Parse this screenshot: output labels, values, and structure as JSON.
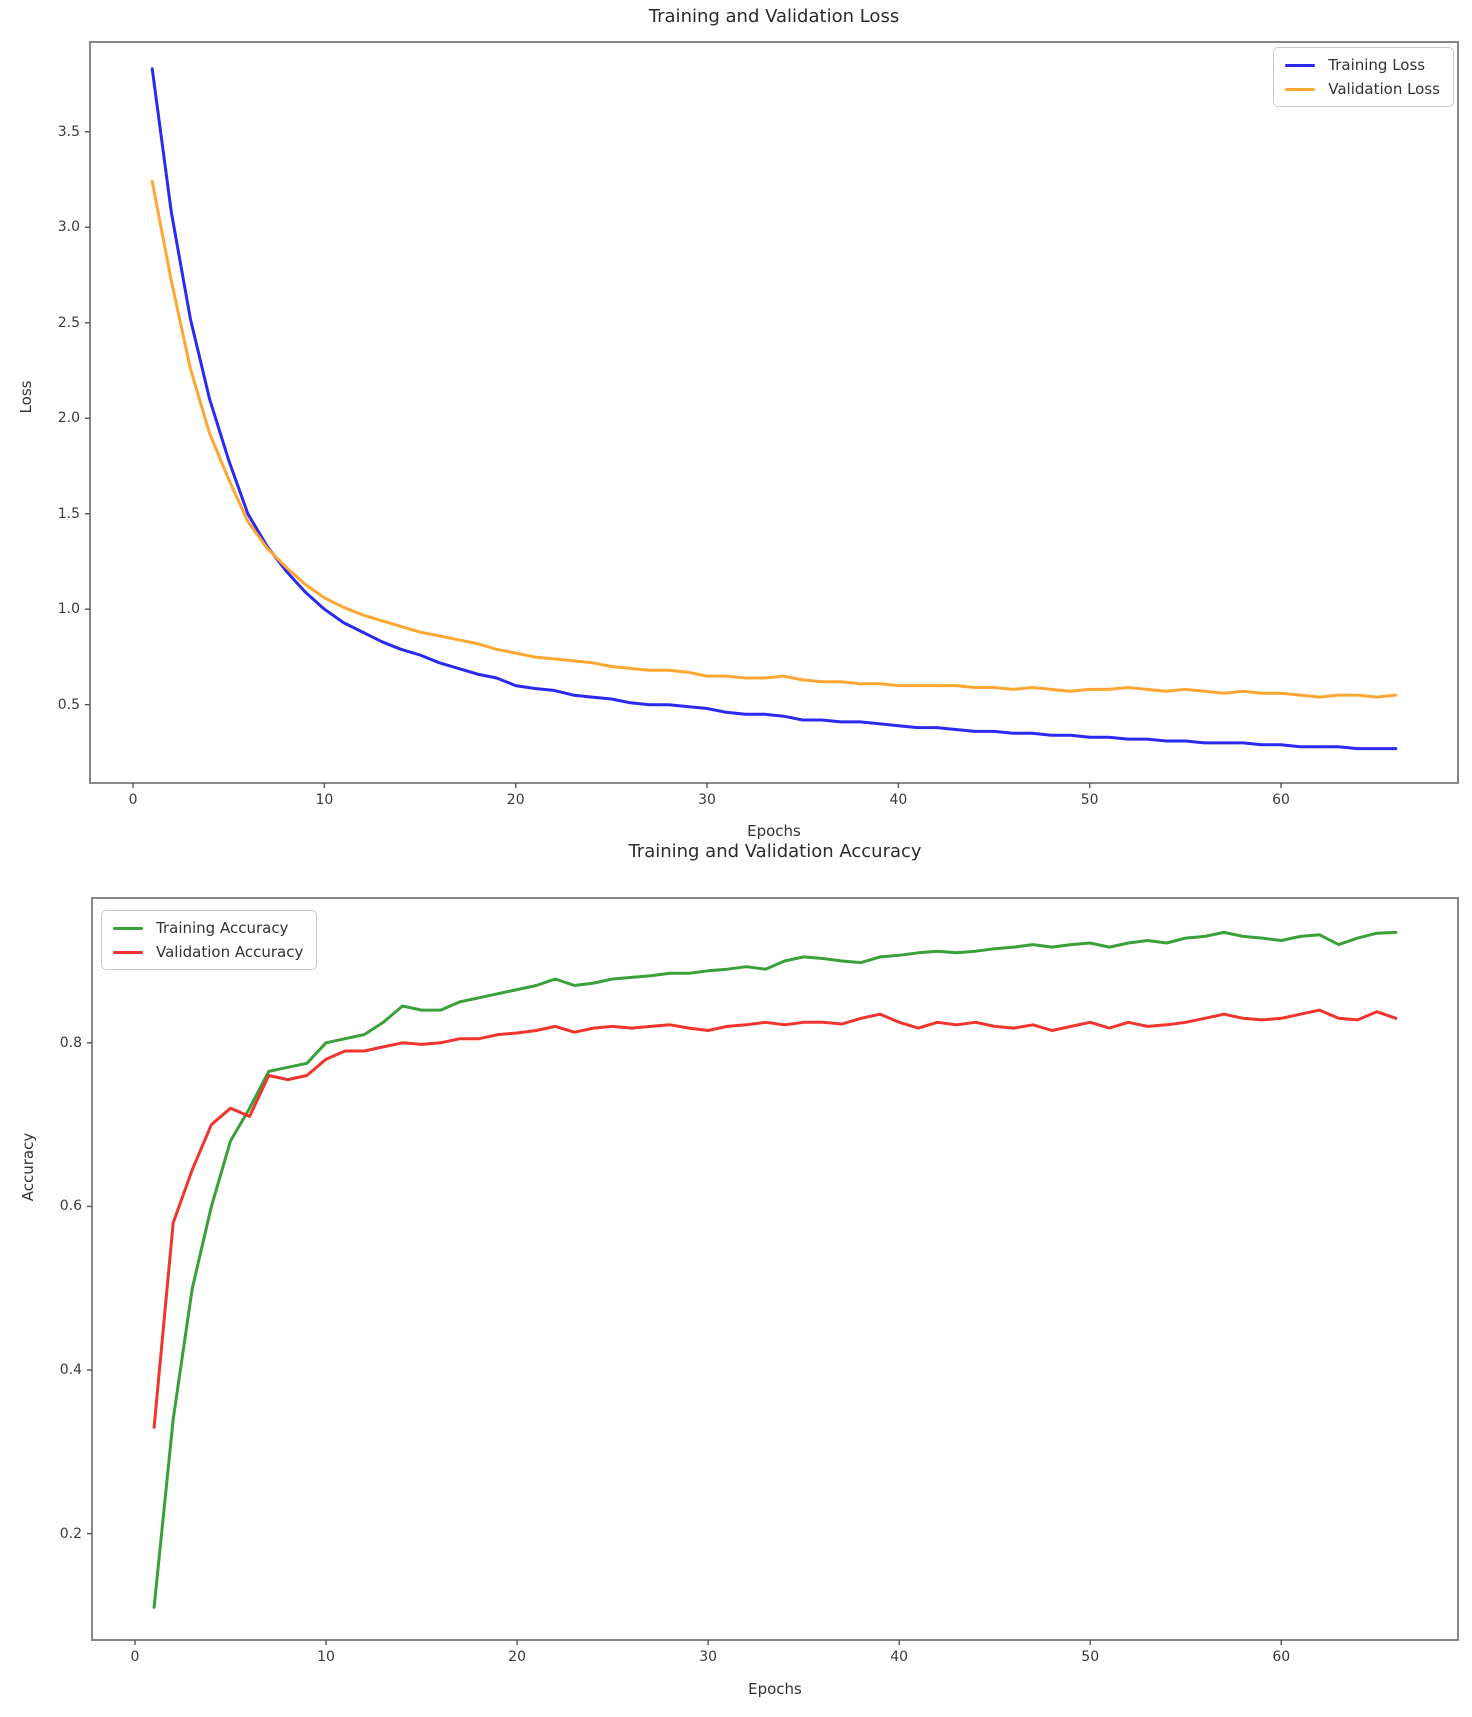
{
  "chart_data": [
    {
      "id": "loss_chart",
      "type": "line",
      "title": "Training and Validation Loss",
      "xlabel": "Epochs",
      "ylabel": "Loss",
      "xlim": [
        -2.25,
        69.25
      ],
      "ylim": [
        0.09,
        3.97
      ],
      "xticks": [
        0,
        10,
        20,
        30,
        40,
        50,
        60
      ],
      "yticks": [
        0.5,
        1.0,
        1.5,
        2.0,
        2.5,
        3.0,
        3.5
      ],
      "grid": false,
      "legend_position": "upper right",
      "x": [
        1,
        2,
        3,
        4,
        5,
        6,
        7,
        8,
        9,
        10,
        11,
        12,
        13,
        14,
        15,
        16,
        17,
        18,
        19,
        20,
        21,
        22,
        23,
        24,
        25,
        26,
        27,
        28,
        29,
        30,
        31,
        32,
        33,
        34,
        35,
        36,
        37,
        38,
        39,
        40,
        41,
        42,
        43,
        44,
        45,
        46,
        47,
        48,
        49,
        50,
        51,
        52,
        53,
        54,
        55,
        56,
        57,
        58,
        59,
        60,
        61,
        62,
        63,
        64,
        65,
        66
      ],
      "series": [
        {
          "name": "Training Loss",
          "color": "#2a2af0",
          "values": [
            3.83,
            3.08,
            2.52,
            2.1,
            1.78,
            1.5,
            1.33,
            1.2,
            1.09,
            1.0,
            0.93,
            0.88,
            0.83,
            0.79,
            0.76,
            0.72,
            0.69,
            0.66,
            0.64,
            0.6,
            0.585,
            0.575,
            0.55,
            0.54,
            0.53,
            0.51,
            0.5,
            0.5,
            0.49,
            0.48,
            0.46,
            0.45,
            0.45,
            0.44,
            0.42,
            0.42,
            0.41,
            0.41,
            0.4,
            0.39,
            0.38,
            0.38,
            0.37,
            0.36,
            0.36,
            0.35,
            0.35,
            0.34,
            0.34,
            0.33,
            0.33,
            0.32,
            0.32,
            0.31,
            0.31,
            0.3,
            0.3,
            0.3,
            0.29,
            0.29,
            0.28,
            0.28,
            0.28,
            0.27,
            0.27,
            0.27
          ]
        },
        {
          "name": "Validation Loss",
          "color": "#ffa733",
          "values": [
            3.24,
            2.72,
            2.26,
            1.92,
            1.68,
            1.46,
            1.32,
            1.22,
            1.13,
            1.06,
            1.01,
            0.97,
            0.94,
            0.91,
            0.88,
            0.86,
            0.84,
            0.82,
            0.79,
            0.77,
            0.75,
            0.74,
            0.73,
            0.72,
            0.7,
            0.69,
            0.68,
            0.68,
            0.67,
            0.65,
            0.65,
            0.64,
            0.64,
            0.65,
            0.63,
            0.62,
            0.62,
            0.61,
            0.61,
            0.6,
            0.6,
            0.6,
            0.6,
            0.59,
            0.59,
            0.58,
            0.59,
            0.58,
            0.57,
            0.58,
            0.58,
            0.59,
            0.58,
            0.57,
            0.58,
            0.57,
            0.56,
            0.57,
            0.56,
            0.56,
            0.55,
            0.54,
            0.55,
            0.55,
            0.54,
            0.55
          ]
        }
      ]
    },
    {
      "id": "accuracy_chart",
      "type": "line",
      "title": "Training and Validation Accuracy",
      "xlabel": "Epochs",
      "ylabel": "Accuracy",
      "xlim": [
        -2.25,
        69.25
      ],
      "ylim": [
        0.07,
        0.977
      ],
      "xticks": [
        0,
        10,
        20,
        30,
        40,
        50,
        60
      ],
      "yticks": [
        0.2,
        0.4,
        0.6,
        0.8
      ],
      "grid": false,
      "legend_position": "upper left",
      "x": [
        1,
        2,
        3,
        4,
        5,
        6,
        7,
        8,
        9,
        10,
        11,
        12,
        13,
        14,
        15,
        16,
        17,
        18,
        19,
        20,
        21,
        22,
        23,
        24,
        25,
        26,
        27,
        28,
        29,
        30,
        31,
        32,
        33,
        34,
        35,
        36,
        37,
        38,
        39,
        40,
        41,
        42,
        43,
        44,
        45,
        46,
        47,
        48,
        49,
        50,
        51,
        52,
        53,
        54,
        55,
        56,
        57,
        58,
        59,
        60,
        61,
        62,
        63,
        64,
        65,
        66
      ],
      "series": [
        {
          "name": "Training Accuracy",
          "color": "#3aa03a",
          "values": [
            0.11,
            0.34,
            0.5,
            0.6,
            0.68,
            0.72,
            0.765,
            0.77,
            0.775,
            0.8,
            0.805,
            0.81,
            0.825,
            0.845,
            0.84,
            0.84,
            0.85,
            0.855,
            0.86,
            0.865,
            0.87,
            0.878,
            0.87,
            0.873,
            0.878,
            0.88,
            0.882,
            0.885,
            0.885,
            0.888,
            0.89,
            0.893,
            0.89,
            0.9,
            0.905,
            0.903,
            0.9,
            0.898,
            0.905,
            0.907,
            0.91,
            0.912,
            0.91,
            0.912,
            0.915,
            0.917,
            0.92,
            0.917,
            0.92,
            0.922,
            0.917,
            0.922,
            0.925,
            0.922,
            0.928,
            0.93,
            0.935,
            0.93,
            0.928,
            0.925,
            0.93,
            0.932,
            0.92,
            0.928,
            0.934,
            0.935
          ]
        },
        {
          "name": "Validation Accuracy",
          "color": "#f0342e",
          "values": [
            0.33,
            0.58,
            0.645,
            0.7,
            0.72,
            0.71,
            0.76,
            0.755,
            0.76,
            0.78,
            0.79,
            0.79,
            0.795,
            0.8,
            0.798,
            0.8,
            0.805,
            0.805,
            0.81,
            0.812,
            0.815,
            0.82,
            0.813,
            0.818,
            0.82,
            0.818,
            0.82,
            0.822,
            0.818,
            0.815,
            0.82,
            0.822,
            0.825,
            0.822,
            0.825,
            0.825,
            0.823,
            0.83,
            0.835,
            0.825,
            0.818,
            0.825,
            0.822,
            0.825,
            0.82,
            0.818,
            0.822,
            0.815,
            0.82,
            0.825,
            0.818,
            0.825,
            0.82,
            0.822,
            0.825,
            0.83,
            0.835,
            0.83,
            0.828,
            0.83,
            0.835,
            0.84,
            0.83,
            0.828,
            0.838,
            0.83
          ]
        }
      ]
    }
  ],
  "style": {
    "axis_color": "#7a7a7a",
    "tick_color": "#555555",
    "background": "#ffffff"
  }
}
